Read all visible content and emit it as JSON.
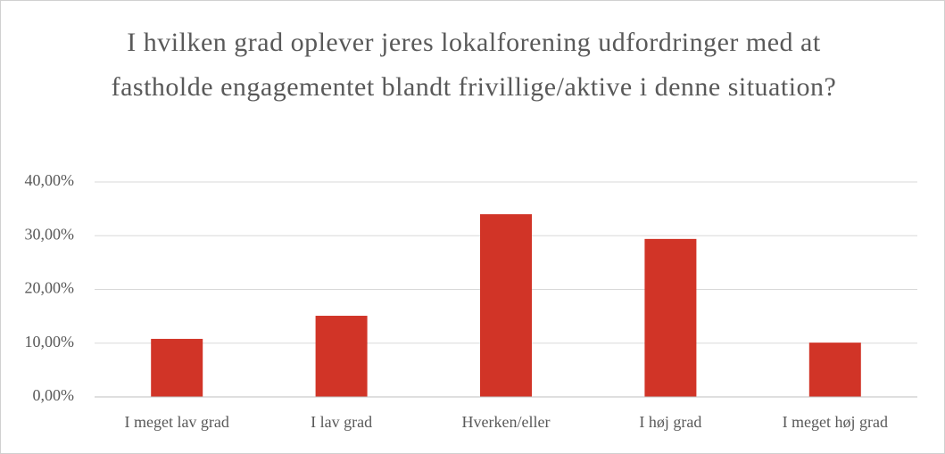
{
  "chart_data": {
    "type": "bar",
    "title": "I hvilken grad oplever jeres lokalforening udfordringer med at fastholde engagementet blandt frivillige/aktive i denne situation?",
    "categories": [
      "I meget lav grad",
      "I lav grad",
      "Hverken/eller",
      "I høj grad",
      "I meget høj grad"
    ],
    "values": [
      10.8,
      15.1,
      34.0,
      29.4,
      10.1
    ],
    "color": "#d13427",
    "ylim": [
      0,
      40
    ],
    "yticks": [
      {
        "value": 0,
        "label": "0,00%"
      },
      {
        "value": 10,
        "label": "10,00%"
      },
      {
        "value": 20,
        "label": "20,00%"
      },
      {
        "value": 30,
        "label": "30,00%"
      },
      {
        "value": 40,
        "label": "40,00%"
      }
    ],
    "grid": true
  }
}
